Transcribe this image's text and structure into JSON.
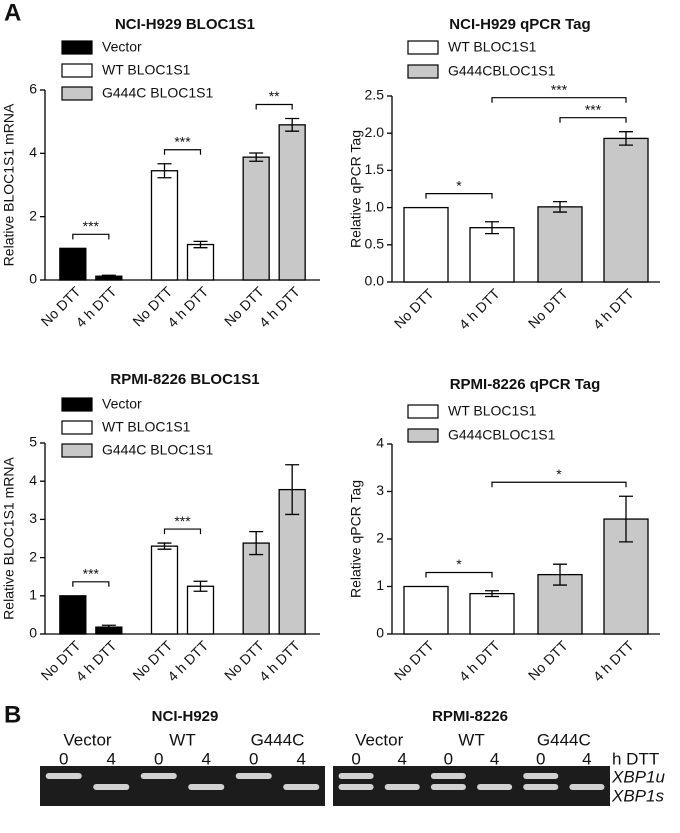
{
  "panel_a_label": "A",
  "chart_data": [
    {
      "type": "bar",
      "title": "NCI-H929 BLOC1S1",
      "y_label": "Relative BLOC1S1 mRNA",
      "categories": [
        "No DTT",
        "4 h DTT",
        "No DTT",
        "4 h DTT",
        "No DTT",
        "4 h DTT"
      ],
      "series": [
        {
          "name": "Vector",
          "color": "#000000",
          "values": [
            1.0,
            0.12,
            null,
            null,
            null,
            null
          ],
          "errors": [
            0,
            0.03,
            null,
            null,
            null,
            null
          ]
        },
        {
          "name": "WT BLOC1S1",
          "color": "#ffffff",
          "values": [
            null,
            null,
            3.45,
            1.12,
            null,
            null
          ],
          "errors": [
            null,
            null,
            0.22,
            0.1,
            null,
            null
          ]
        },
        {
          "name": "G444C BLOC1S1",
          "color": "#c8c8c8",
          "values": [
            null,
            null,
            null,
            null,
            3.88,
            4.9
          ],
          "errors": [
            null,
            null,
            null,
            null,
            0.13,
            0.2
          ]
        }
      ],
      "annotations": [
        "***",
        "***",
        "**"
      ],
      "ylim": [
        0,
        6
      ],
      "yticks": [
        0,
        2,
        4,
        6
      ]
    },
    {
      "type": "bar",
      "title": "NCI-H929 qPCR Tag",
      "y_label": "Relative qPCR Tag",
      "categories": [
        "No DTT",
        "4 h DTT",
        "No DTT",
        "4 h DTT"
      ],
      "series": [
        {
          "name": "WT BLOC1S1",
          "color": "#ffffff",
          "values": [
            1.0,
            0.73,
            null,
            null
          ],
          "errors": [
            0,
            0.08,
            null,
            null
          ]
        },
        {
          "name": "G444CBLOC1S1",
          "color": "#c8c8c8",
          "values": [
            null,
            null,
            1.01,
            1.93
          ],
          "errors": [
            null,
            null,
            0.07,
            0.09
          ]
        }
      ],
      "annotations": [
        "*",
        "***",
        "***"
      ],
      "ylim": [
        0,
        2.5
      ],
      "yticks": [
        {
          "value": 0,
          "label": "0.0"
        },
        0.5,
        {
          "value": 1,
          "label": "1.0"
        },
        1.5,
        {
          "value": 2,
          "label": "2.0"
        },
        2.5
      ]
    },
    {
      "type": "bar",
      "title": "RPMI-8226 BLOC1S1",
      "y_label": "Relative BLOC1S1 mRNA",
      "categories": [
        "No DTT",
        "4 h DTT",
        "No DTT",
        "4 h DTT",
        "No DTT",
        "4 h DTT"
      ],
      "series": [
        {
          "name": "Vector",
          "color": "#000000",
          "values": [
            1.0,
            0.18,
            null,
            null,
            null,
            null
          ],
          "errors": [
            0,
            0.05,
            null,
            null,
            null,
            null
          ]
        },
        {
          "name": "WT BLOC1S1",
          "color": "#ffffff",
          "values": [
            null,
            null,
            2.3,
            1.25,
            null,
            null
          ],
          "errors": [
            null,
            null,
            0.08,
            0.13,
            null,
            null
          ]
        },
        {
          "name": "G444C BLOC1S1",
          "color": "#c8c8c8",
          "values": [
            null,
            null,
            null,
            null,
            2.38,
            3.78
          ],
          "errors": [
            null,
            null,
            null,
            null,
            0.3,
            0.65
          ]
        }
      ],
      "annotations": [
        "***",
        "***"
      ],
      "ylim": [
        0,
        5
      ],
      "yticks": [
        0,
        1,
        2,
        3,
        4,
        5
      ]
    },
    {
      "type": "bar",
      "title": "RPMI-8226 qPCR Tag",
      "y_label": "Relative qPCR Tag",
      "categories": [
        "No DTT",
        "4 h DTT",
        "No DTT",
        "4 h DTT"
      ],
      "series": [
        {
          "name": "WT BLOC1S1",
          "color": "#ffffff",
          "values": [
            1.0,
            0.85,
            null,
            null
          ],
          "errors": [
            0,
            0.06,
            null,
            null
          ]
        },
        {
          "name": "G444CBLOC1S1",
          "color": "#c8c8c8",
          "values": [
            null,
            null,
            1.25,
            2.42
          ],
          "errors": [
            null,
            null,
            0.22,
            0.48
          ]
        }
      ],
      "annotations": [
        "*",
        "*"
      ],
      "ylim": [
        0,
        4
      ],
      "yticks": [
        0,
        1,
        2,
        3,
        4
      ]
    }
  ],
  "panel_b": {
    "label": "B",
    "gels": [
      {
        "title": "NCI-H929",
        "groups": [
          "Vector",
          "WT",
          "G444C"
        ],
        "lanes": [
          "0",
          "4",
          "0",
          "4",
          "0",
          "4"
        ]
      },
      {
        "title": "RPMI-8226",
        "groups": [
          "Vector",
          "WT",
          "G444C"
        ],
        "lanes": [
          "0",
          "4",
          "0",
          "4",
          "0",
          "4"
        ]
      }
    ],
    "time_label": "h DTT",
    "bands": [
      "XBP1u",
      "XBP1s"
    ]
  }
}
